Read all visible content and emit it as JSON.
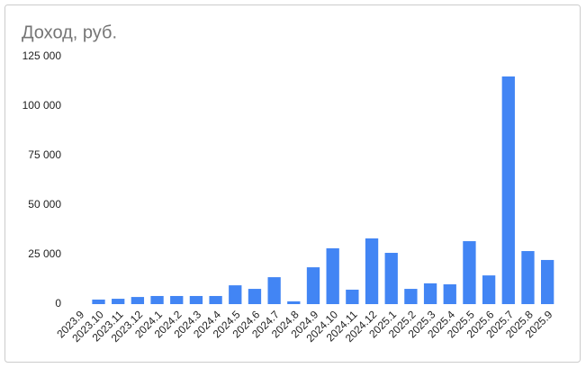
{
  "chart_data": {
    "type": "bar",
    "title": "Доход, руб.",
    "categories": [
      "2023.9",
      "2023.10",
      "2023.11",
      "2023.12",
      "2024.1",
      "2024.2",
      "2024.3",
      "2024.4",
      "2024.5",
      "2024.6",
      "2024.7",
      "2024.8",
      "2024.9",
      "2024.10",
      "2024.11",
      "2024.12",
      "2025.1",
      "2025.2",
      "2025.3",
      "2025.4",
      "2025.5",
      "2025.6",
      "2025.7",
      "2025.8",
      "2025.9"
    ],
    "values": [
      0,
      2300,
      2700,
      3600,
      4100,
      4100,
      4100,
      4100,
      9500,
      7700,
      13600,
      1400,
      18600,
      28200,
      7300,
      33200,
      25900,
      7700,
      10500,
      10000,
      31800,
      14500,
      115000,
      26800,
      22300
    ],
    "color": "#4285f4",
    "ylim": [
      0,
      125000
    ],
    "yticks": [
      0,
      {
        "value": 25000,
        "label": "25 000"
      },
      {
        "value": 50000,
        "label": "50 000"
      },
      {
        "value": 75000,
        "label": "75 000"
      },
      {
        "value": 100000,
        "label": "100 000"
      },
      {
        "value": 125000,
        "label": "125 000"
      }
    ],
    "grid": false
  }
}
